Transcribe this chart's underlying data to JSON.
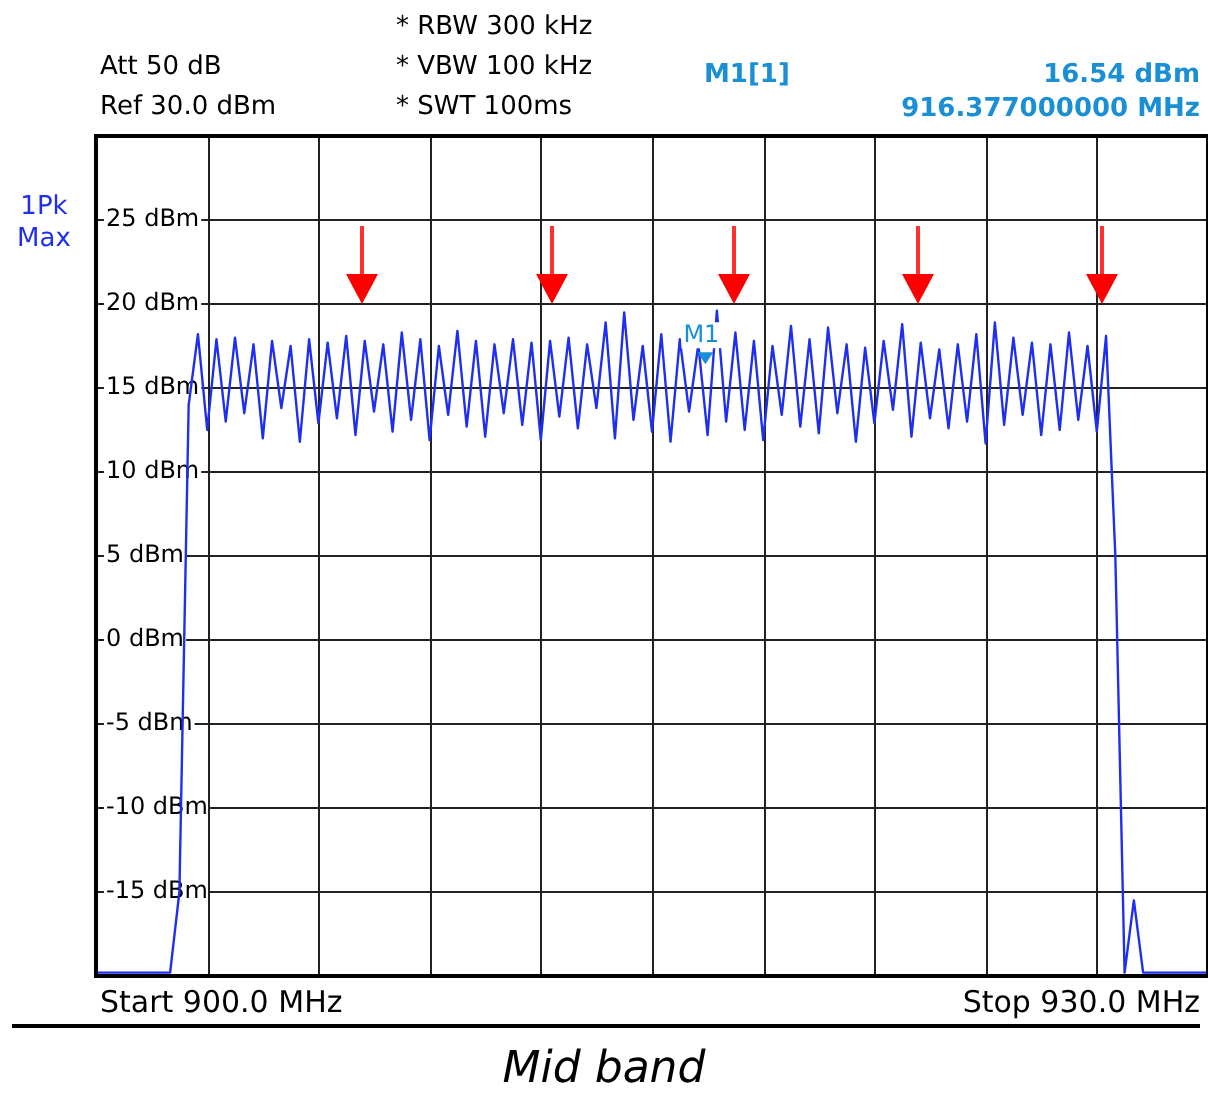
{
  "chart_data": {
    "type": "line",
    "ylim": [
      -20,
      30
    ],
    "yticks": [
      {
        "value": 25,
        "label": "25 dBm"
      },
      {
        "value": 20,
        "label": "20 dBm"
      },
      {
        "value": 15,
        "label": "15 dBm"
      },
      {
        "value": 10,
        "label": "10 dBm"
      },
      {
        "value": 5,
        "label": "5 dBm"
      },
      {
        "value": 0,
        "label": "0 dBm"
      },
      {
        "value": -5,
        "label": "-5 dBm"
      },
      {
        "value": -10,
        "label": "-10 dBm"
      },
      {
        "value": -15,
        "label": "-15 dBm"
      }
    ],
    "tick_labels": "y",
    "grid": true,
    "legend": false,
    "marker": "none",
    "line_style": "solid",
    "categories": [
      null,
      null,
      null,
      null,
      null,
      null,
      null,
      null,
      null,
      null,
      null,
      null,
      null,
      null,
      null,
      null,
      null,
      null,
      null,
      null,
      null,
      null,
      null,
      null,
      null,
      null,
      null,
      null,
      null,
      null,
      null,
      null,
      null,
      null,
      null,
      null,
      null,
      null,
      null,
      null,
      null,
      null,
      null,
      null,
      null,
      null,
      null,
      null,
      null,
      null,
      null,
      null,
      null,
      null,
      null,
      null,
      null,
      null,
      null,
      null,
      null,
      null,
      null,
      null,
      null,
      null,
      null,
      null,
      null,
      null,
      null,
      null,
      null,
      null,
      null,
      null,
      null,
      null,
      null,
      null,
      null,
      null,
      null,
      null,
      null,
      null,
      null,
      null,
      null,
      null,
      null,
      null,
      null,
      null,
      null,
      null,
      null,
      null,
      null,
      null,
      null,
      null,
      null,
      null,
      null,
      null,
      null,
      null,
      null,
      null,
      null,
      null,
      null,
      null,
      null,
      null,
      null,
      null,
      null,
      null,
      null
    ],
    "series": [
      {
        "color": "#1f2ff0",
        "values": [
          -19.8,
          -19.8,
          -19.8,
          -19.8,
          -19.8,
          -19.8,
          -19.8,
          -19.8,
          -19.8,
          -15,
          14,
          18.2,
          12.5,
          17.9,
          13.0,
          18.0,
          13.5,
          17.6,
          12.0,
          17.8,
          13.8,
          17.5,
          11.8,
          17.9,
          12.9,
          17.7,
          13.2,
          18.1,
          12.2,
          17.8,
          13.6,
          17.6,
          12.4,
          18.3,
          13.1,
          17.9,
          11.9,
          17.5,
          13.4,
          18.4,
          12.7,
          17.8,
          12.1,
          17.6,
          13.5,
          17.9,
          12.8,
          17.7,
          11.9,
          17.8,
          13.3,
          18.0,
          12.6,
          17.6,
          13.8,
          18.9,
          12.0,
          19.5,
          13.1,
          17.5,
          12.4,
          18.2,
          11.8,
          17.9,
          13.6,
          17.6,
          12.2,
          19.6,
          13.0,
          18.3,
          12.5,
          17.8,
          11.9,
          17.5,
          13.4,
          18.7,
          12.7,
          17.9,
          12.3,
          18.6,
          13.5,
          17.6,
          11.8,
          17.4,
          12.9,
          17.8,
          13.7,
          18.8,
          12.1,
          17.7,
          13.2,
          17.3,
          12.6,
          17.6,
          13.0,
          18.2,
          11.7,
          18.9,
          12.8,
          18.0,
          13.4,
          17.7,
          12.2,
          17.6,
          12.5,
          18.3,
          13.1,
          17.5,
          12.4,
          18.1,
          5,
          -19.8,
          -15.5,
          -19.8,
          -19.8,
          -19.8,
          -19.8,
          -19.8,
          -19.8,
          -19.8,
          -19.8
        ]
      }
    ],
    "annotations": [
      "Att  50 dB",
      "Ref  30.0 dBm",
      "* RBW 300 kHz",
      "* VBW 100 kHz",
      "* SWT 100ms",
      "M1[1]",
      "16.54 dBm",
      "916.377000000 MHz",
      "1Pk Max",
      "Start 900.0 MHz",
      "Stop 930.0 MHz",
      "Mid band",
      {
        "text": "M1",
        "y": 16.54
      }
    ]
  }
}
